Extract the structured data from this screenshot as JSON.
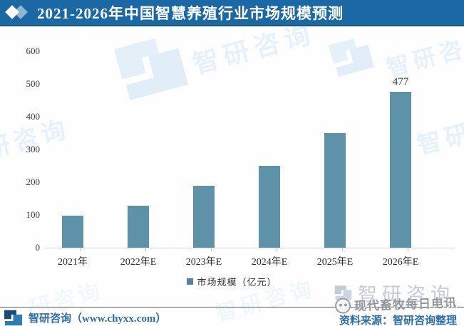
{
  "header": {
    "title": "2021-2026年中国智慧养殖行业市场规模预测"
  },
  "chart_data": {
    "type": "bar",
    "title": "2021-2026年中国智慧养殖行业市场规模预测",
    "categories": [
      "2021年",
      "2022年E",
      "2023年E",
      "2024年E",
      "2025年E",
      "2026年E"
    ],
    "values": [
      97,
      129,
      190,
      250,
      351,
      477
    ],
    "value_labels": [
      "",
      "",
      "",
      "",
      "",
      "477"
    ],
    "xlabel": "",
    "ylabel": "",
    "ylim": [
      0,
      600
    ],
    "yticks": [
      0,
      100,
      200,
      300,
      400,
      500,
      600
    ],
    "grid": false,
    "legend": [
      "市场规模（亿元）"
    ],
    "legend_position": "bottom"
  },
  "legend": {
    "label": "市场规模（亿元）"
  },
  "watermarks": {
    "brand_text": "智研咨询",
    "side_text_left": "研咨询",
    "side_text_right": "智研"
  },
  "branding": {
    "gray_logo_text": "智研咨询",
    "wechat_name": "现代畜牧每日电讯"
  },
  "footer": {
    "left_text": "智研咨询（www.chyxx.com）",
    "source_text": "资料来源：智研咨询整理"
  },
  "colors": {
    "header_bg": "#1a69a5",
    "bar": "#5d92a9",
    "legend_swatch": "#53869d",
    "footer_text": "#2d6ea8",
    "axis_line": "#d9d9d9",
    "watermark": "#e7f1f9",
    "gray_logo": "#c3ccd5"
  }
}
